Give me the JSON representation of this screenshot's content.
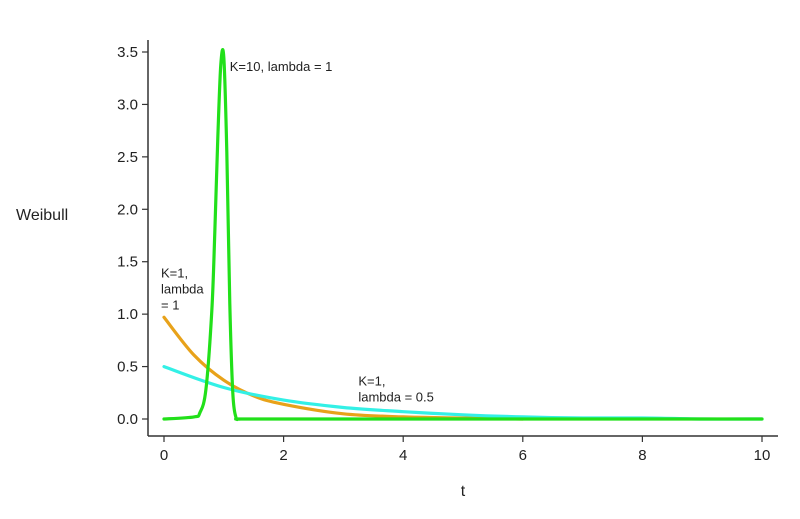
{
  "chart_data": {
    "type": "line",
    "title": "",
    "xlabel": "t",
    "ylabel": "Weibull",
    "xlim": [
      0,
      10
    ],
    "ylim": [
      0,
      3.5
    ],
    "x_ticks": [
      "0",
      "2",
      "4",
      "6",
      "8",
      "10"
    ],
    "y_ticks": [
      "0.0",
      "0.5",
      "1.0",
      "1.5",
      "2.0",
      "2.5",
      "3.0",
      "3.5"
    ],
    "grid": false,
    "series": [
      {
        "k": 1,
        "lambda": 1,
        "color": "#e8a21a",
        "x": [
          0,
          0.5,
          1,
          1.5,
          2,
          3,
          4,
          5,
          6
        ],
        "y": [
          0.97,
          0.61,
          0.37,
          0.22,
          0.14,
          0.05,
          0.02,
          0.01,
          0.0
        ]
      },
      {
        "k": 1,
        "lambda": 0.5,
        "color": "#33f0e6",
        "x": [
          0,
          1,
          2,
          3,
          4,
          5,
          6,
          7,
          8,
          9,
          10
        ],
        "y": [
          0.5,
          0.3,
          0.18,
          0.11,
          0.07,
          0.04,
          0.02,
          0.01,
          0.01,
          0.0,
          0.0
        ]
      },
      {
        "k": 10,
        "lambda": 1,
        "color": "#22e01a",
        "x": [
          0,
          0.5,
          0.6,
          0.7,
          0.8,
          0.85,
          0.9,
          0.95,
          1.0,
          1.05,
          1.1,
          1.15,
          1.2,
          1.25,
          1.3,
          1.4,
          2,
          10
        ],
        "y": [
          0.0,
          0.02,
          0.06,
          0.28,
          1.03,
          1.78,
          2.68,
          3.38,
          3.45,
          2.55,
          1.1,
          0.25,
          0.02,
          0.0,
          0.0,
          0.0,
          0.0,
          0.0
        ]
      }
    ],
    "annotations": [
      {
        "lines": [
          "K=10, lambda = 1"
        ],
        "x": 1.1,
        "y": 3.32
      },
      {
        "lines": [
          "K=1,",
          "lambda",
          "= 1"
        ],
        "x": -0.05,
        "y": 1.35
      },
      {
        "lines": [
          "K=1,",
          "lambda = 0.5"
        ],
        "x": 3.25,
        "y": 0.32
      }
    ]
  }
}
